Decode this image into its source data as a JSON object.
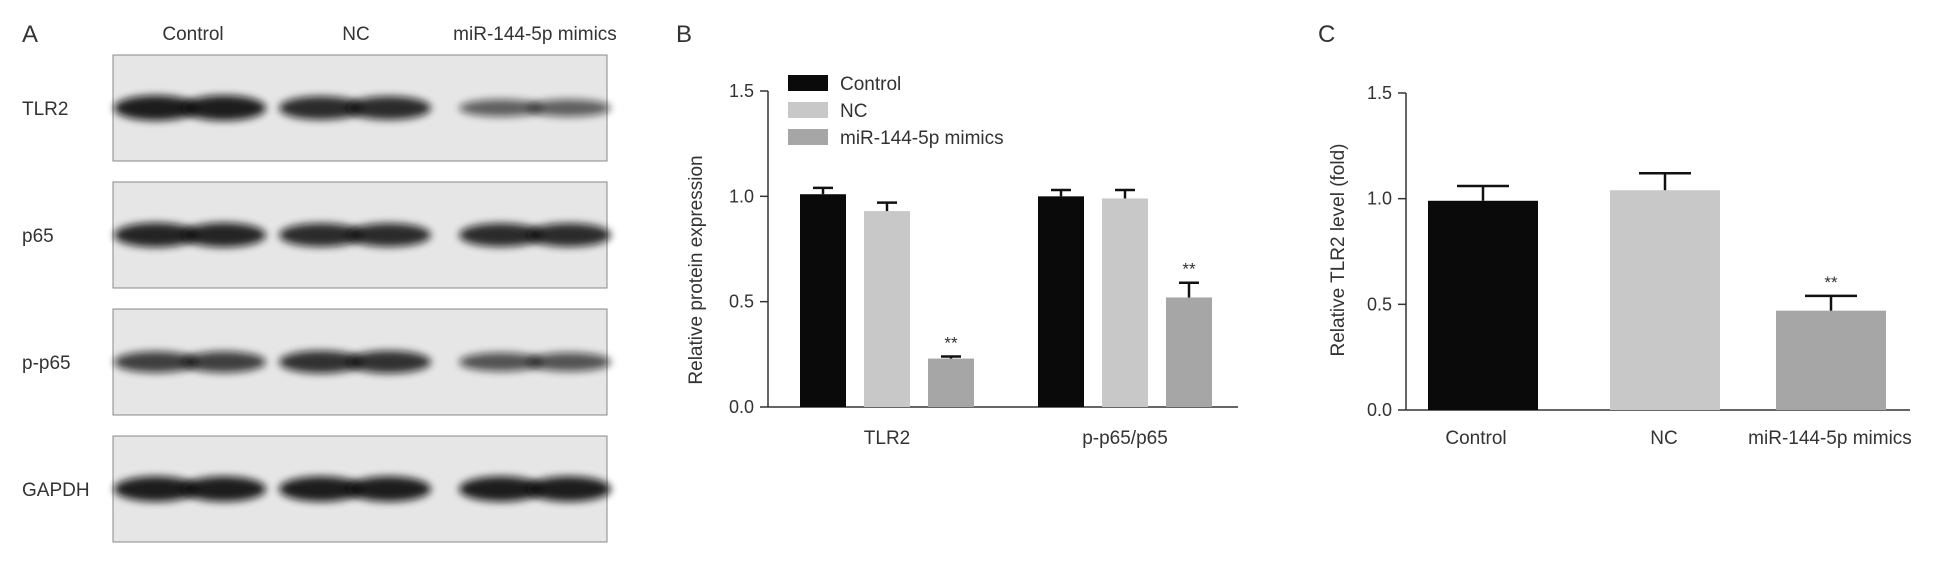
{
  "panels": {
    "a": {
      "letter": "A"
    },
    "b": {
      "letter": "B"
    },
    "c": {
      "letter": "C"
    }
  },
  "blot": {
    "lanes": [
      "Control",
      "NC",
      "miR-144-5p mimics"
    ],
    "rows": [
      {
        "label": "TLR2",
        "intensity": [
          0.95,
          0.85,
          0.45
        ]
      },
      {
        "label": "p65",
        "intensity": [
          0.9,
          0.85,
          0.85
        ]
      },
      {
        "label": "p-p65",
        "intensity": [
          0.7,
          0.8,
          0.55
        ]
      },
      {
        "label": "GAPDH",
        "intensity": [
          0.95,
          0.95,
          0.95
        ]
      }
    ]
  },
  "colors": {
    "control": "#0a0a0a",
    "nc": "#c8c8c8",
    "mimics": "#a6a6a6"
  },
  "chart_data": [
    {
      "type": "bar",
      "panel": "B",
      "ylabel": "Relative protein expression",
      "xlabel": "",
      "ylim": [
        0,
        1.5
      ],
      "yticks": [
        "0.0",
        "0.5",
        "1.0",
        "1.5"
      ],
      "categories": [
        "TLR2",
        "p-p65/p65"
      ],
      "legend": {
        "position": "top-left"
      },
      "series": [
        {
          "name": "Control",
          "values": [
            1.01,
            1.0
          ],
          "errors": [
            0.03,
            0.03
          ]
        },
        {
          "name": "NC",
          "values": [
            0.93,
            0.99
          ],
          "errors": [
            0.04,
            0.04
          ]
        },
        {
          "name": "miR-144-5p mimics",
          "values": [
            0.23,
            0.52
          ],
          "errors": [
            0.01,
            0.07
          ]
        }
      ],
      "annotations": [
        {
          "category": "TLR2",
          "series": "miR-144-5p mimics",
          "text": "**"
        },
        {
          "category": "p-p65/p65",
          "series": "miR-144-5p mimics",
          "text": "**"
        }
      ]
    },
    {
      "type": "bar",
      "panel": "C",
      "ylabel": "Relative TLR2 level (fold)",
      "xlabel": "",
      "ylim": [
        0,
        1.5
      ],
      "yticks": [
        "0.0",
        "0.5",
        "1.0",
        "1.5"
      ],
      "categories": [
        "Control",
        "NC",
        "miR-144-5p mimics"
      ],
      "values": [
        0.99,
        1.04,
        0.47
      ],
      "errors": [
        0.07,
        0.08,
        0.07
      ],
      "annotations": [
        {
          "category": "miR-144-5p mimics",
          "text": "**"
        }
      ]
    }
  ]
}
